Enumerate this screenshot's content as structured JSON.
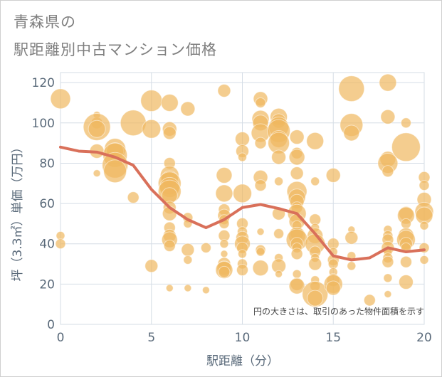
{
  "title_line1": "青森県の",
  "title_line2": "駅距離別中古マンション価格",
  "chart_data": {
    "type": "scatter",
    "title": "青森県の駅距離別中古マンション価格",
    "xlabel": "駅距離（分）",
    "ylabel": "坪（3.3㎡）単価（万円）",
    "xlim": [
      0,
      20
    ],
    "ylim": [
      0,
      125
    ],
    "xticks": [
      "0",
      "5",
      "10",
      "15",
      "20"
    ],
    "yticks": [
      "0",
      "20",
      "40",
      "60",
      "80",
      "100",
      "120"
    ],
    "grid": true,
    "note": "円の大きさは、取引のあった物件面積を示す",
    "colors": {
      "bubble": "#f0b860",
      "line": "#d9705a",
      "grid": "#d5dde6"
    },
    "series": [
      {
        "type": "bubble",
        "points": [
          [
            0,
            112,
            14
          ],
          [
            0,
            44,
            6
          ],
          [
            0,
            40,
            7
          ],
          [
            2,
            104,
            5
          ],
          [
            2,
            100,
            8
          ],
          [
            2,
            98,
            19
          ],
          [
            2,
            97,
            12
          ],
          [
            2,
            86,
            10
          ],
          [
            2,
            75,
            5
          ],
          [
            3,
            87,
            15
          ],
          [
            3,
            86,
            12
          ],
          [
            3,
            84,
            17
          ],
          [
            3,
            79,
            18
          ],
          [
            3,
            76,
            16
          ],
          [
            4,
            100,
            18
          ],
          [
            4,
            63,
            8
          ],
          [
            5,
            111,
            15
          ],
          [
            5,
            97,
            13
          ],
          [
            5,
            29,
            9
          ],
          [
            6,
            110,
            12
          ],
          [
            6,
            97,
            10
          ],
          [
            6,
            95,
            9
          ],
          [
            6,
            80,
            8
          ],
          [
            6,
            74,
            13
          ],
          [
            6,
            72,
            12
          ],
          [
            6,
            70,
            16
          ],
          [
            6,
            68,
            14
          ],
          [
            6,
            66,
            16
          ],
          [
            6,
            64,
            11
          ],
          [
            6,
            58,
            9
          ],
          [
            6,
            55,
            10
          ],
          [
            6,
            48,
            8
          ],
          [
            6,
            44,
            9
          ],
          [
            6,
            42,
            11
          ],
          [
            6,
            39,
            8
          ],
          [
            6,
            18,
            5
          ],
          [
            7,
            107,
            10
          ],
          [
            7,
            53,
            7
          ],
          [
            7,
            50,
            6
          ],
          [
            7,
            37,
            9
          ],
          [
            7,
            32,
            6
          ],
          [
            7,
            18,
            5
          ],
          [
            8,
            38,
            7
          ],
          [
            8,
            17,
            5
          ],
          [
            9,
            116,
            9
          ],
          [
            9,
            74,
            11
          ],
          [
            9,
            65,
            12
          ],
          [
            9,
            57,
            8
          ],
          [
            9,
            54,
            9
          ],
          [
            9,
            52,
            7
          ],
          [
            9,
            50,
            7
          ],
          [
            9,
            44,
            8
          ],
          [
            9,
            40,
            6
          ],
          [
            9,
            35,
            5
          ],
          [
            9,
            30,
            9
          ],
          [
            9,
            28,
            10
          ],
          [
            9,
            27,
            12
          ],
          [
            9,
            26,
            8
          ],
          [
            10,
            92,
            10
          ],
          [
            10,
            86,
            9
          ],
          [
            10,
            83,
            6
          ],
          [
            10,
            65,
            13
          ],
          [
            10,
            50,
            8
          ],
          [
            10,
            46,
            7
          ],
          [
            10,
            43,
            9
          ],
          [
            10,
            40,
            11
          ],
          [
            10,
            38,
            8
          ],
          [
            10,
            35,
            6
          ],
          [
            10,
            30,
            7
          ],
          [
            10,
            27,
            8
          ],
          [
            11,
            112,
            10
          ],
          [
            11,
            110,
            7
          ],
          [
            11,
            102,
            12
          ],
          [
            11,
            100,
            11
          ],
          [
            11,
            95,
            13
          ],
          [
            11,
            90,
            8
          ],
          [
            11,
            73,
            10
          ],
          [
            11,
            69,
            8
          ],
          [
            11,
            46,
            5
          ],
          [
            11,
            37,
            7
          ],
          [
            11,
            36,
            6
          ],
          [
            11,
            28,
            11
          ],
          [
            12,
            103,
            12
          ],
          [
            12,
            101,
            10
          ],
          [
            12,
            98,
            14
          ],
          [
            12,
            96,
            16
          ],
          [
            12,
            92,
            12
          ],
          [
            12,
            90,
            15
          ],
          [
            12,
            83,
            10
          ],
          [
            12,
            71,
            6
          ],
          [
            12,
            55,
            9
          ],
          [
            12,
            45,
            7
          ],
          [
            12,
            33,
            6
          ],
          [
            12,
            29,
            10
          ],
          [
            12,
            25,
            5
          ],
          [
            13,
            93,
            10
          ],
          [
            13,
            85,
            8
          ],
          [
            13,
            83,
            11
          ],
          [
            13,
            75,
            9
          ],
          [
            13,
            66,
            14
          ],
          [
            13,
            63,
            12
          ],
          [
            13,
            61,
            10
          ],
          [
            13,
            58,
            8
          ],
          [
            13,
            55,
            13
          ],
          [
            13,
            51,
            11
          ],
          [
            13,
            49,
            7
          ],
          [
            13,
            45,
            9
          ],
          [
            13,
            44,
            12
          ],
          [
            13,
            42,
            15
          ],
          [
            13,
            40,
            9
          ],
          [
            13,
            38,
            7
          ],
          [
            13,
            35,
            8
          ],
          [
            13,
            25,
            6
          ],
          [
            13,
            20,
            9
          ],
          [
            13,
            19,
            11
          ],
          [
            14,
            91,
            12
          ],
          [
            14,
            71,
            6
          ],
          [
            14,
            52,
            8
          ],
          [
            14,
            48,
            6
          ],
          [
            14,
            44,
            11
          ],
          [
            14,
            40,
            14
          ],
          [
            14,
            36,
            8
          ],
          [
            14,
            33,
            6
          ],
          [
            14,
            30,
            9
          ],
          [
            14,
            22,
            6
          ],
          [
            14,
            19,
            7
          ],
          [
            14,
            15,
            18
          ],
          [
            14,
            13,
            11
          ],
          [
            15,
            74,
            10
          ],
          [
            15,
            40,
            8
          ],
          [
            15,
            36,
            6
          ],
          [
            15,
            32,
            8
          ],
          [
            15,
            30,
            7
          ],
          [
            15,
            26,
            6
          ],
          [
            15,
            22,
            9
          ],
          [
            15,
            20,
            13
          ],
          [
            15,
            18,
            10
          ],
          [
            16,
            117,
            18
          ],
          [
            16,
            99,
            16
          ],
          [
            16,
            95,
            11
          ],
          [
            16,
            47,
            5
          ],
          [
            16,
            43,
            9
          ],
          [
            16,
            34,
            6
          ],
          [
            16,
            29,
            6
          ],
          [
            17,
            12,
            8
          ],
          [
            18,
            120,
            12
          ],
          [
            18,
            103,
            10
          ],
          [
            18,
            82,
            11
          ],
          [
            18,
            80,
            14
          ],
          [
            18,
            76,
            8
          ],
          [
            18,
            47,
            6
          ],
          [
            18,
            44,
            7
          ],
          [
            18,
            42,
            8
          ],
          [
            18,
            38,
            9
          ],
          [
            18,
            36,
            6
          ],
          [
            18,
            33,
            7
          ],
          [
            18,
            31,
            8
          ],
          [
            18,
            23,
            6
          ],
          [
            18,
            15,
            5
          ],
          [
            19,
            100,
            7
          ],
          [
            19,
            88,
            20
          ],
          [
            19,
            55,
            10
          ],
          [
            19,
            54,
            12
          ],
          [
            19,
            50,
            7
          ],
          [
            19,
            44,
            11
          ],
          [
            19,
            42,
            13
          ],
          [
            19,
            40,
            9
          ],
          [
            19,
            38,
            7
          ],
          [
            19,
            31,
            8
          ],
          [
            19,
            21,
            10
          ],
          [
            20,
            73,
            8
          ],
          [
            20,
            69,
            7
          ],
          [
            20,
            62,
            10
          ],
          [
            20,
            56,
            13
          ],
          [
            20,
            54,
            12
          ],
          [
            20,
            49,
            6
          ],
          [
            20,
            38,
            7
          ],
          [
            20,
            32,
            6
          ]
        ]
      },
      {
        "type": "line",
        "x": [
          0,
          1,
          2,
          3,
          4,
          5,
          6,
          7,
          8,
          9,
          10,
          11,
          12,
          13,
          14,
          15,
          16,
          17,
          18,
          19,
          20
        ],
        "y": [
          88,
          86,
          85.5,
          83,
          79,
          67,
          58,
          52,
          48,
          52,
          58,
          59.5,
          57.5,
          55,
          45,
          34,
          32,
          33,
          38,
          36,
          37
        ]
      }
    ]
  }
}
